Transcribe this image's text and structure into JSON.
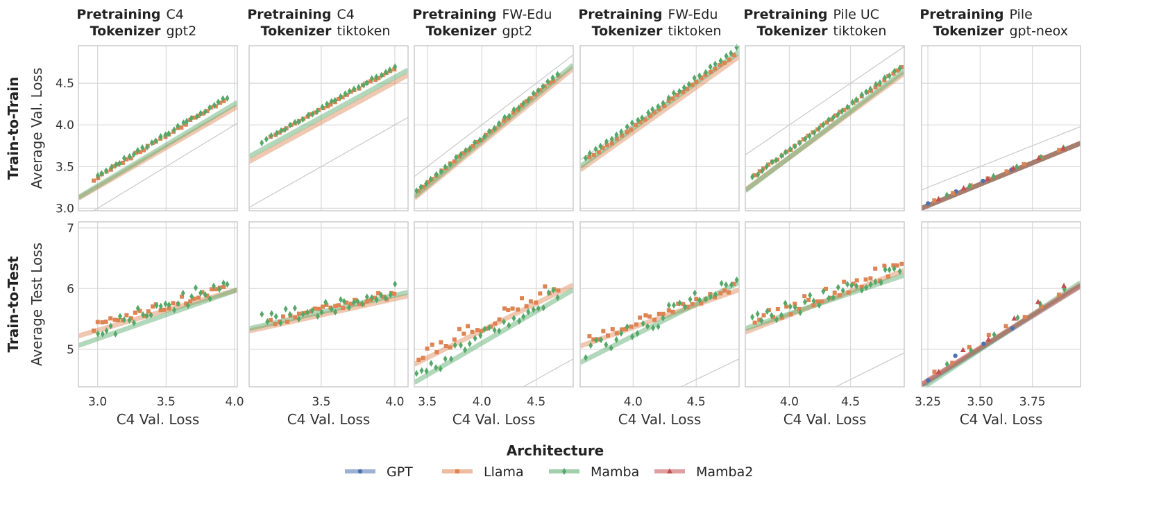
{
  "chart_data": {
    "type": "scatter",
    "colors": {
      "GPT": "#4c72b0",
      "Llama": "#dd8452",
      "Mamba": "#55a868",
      "Mamba2": "#c44e52",
      "grid": "#d9d9d9",
      "frame": "#cccccc",
      "identity": "#cccccc"
    },
    "row_labels": [
      "Train-to-Train",
      "Train-to-Test"
    ],
    "row_ylabels": [
      "Average Val. Loss",
      "Average Test Loss"
    ],
    "row_ylim": [
      [
        2.97,
        4.95
      ],
      [
        4.38,
        7.1
      ]
    ],
    "row_yticks": [
      [
        "3.0",
        "3.5",
        "4.0",
        "4.5"
      ],
      [
        "5",
        "6",
        "7"
      ]
    ],
    "xlabel": "C4 Val. Loss",
    "title_keys": [
      "Pretraining",
      "Tokenizer"
    ],
    "legend": {
      "title": "Architecture",
      "entries": [
        "GPT",
        "Llama",
        "Mamba",
        "Mamba2"
      ]
    },
    "columns": [
      {
        "pretraining": "C4",
        "tokenizer": "gpt2",
        "xlim": [
          2.86,
          4.02
        ],
        "xticks": [
          "3.0",
          "3.5",
          "4.0"
        ],
        "series": [
          {
            "name": "Llama",
            "x0": 2.97,
            "x1": 3.92,
            "n": 32,
            "fits": [
              {
                "x0": 2.86,
                "x1": 4.02,
                "y0": 3.12,
                "y1": 4.22
              },
              {
                "x0": 2.86,
                "x1": 4.02,
                "y0": 5.22,
                "y1": 5.98
              }
            ],
            "train": {
              "a": 3.23,
              "b": 1.0,
              "noise": 0.015
            },
            "test": {
              "a": 5.3,
              "b": 0.66,
              "noise": 0.07
            }
          },
          {
            "name": "Mamba",
            "x0": 3.0,
            "x1": 3.95,
            "n": 30,
            "fits": [
              {
                "x0": 2.86,
                "x1": 4.02,
                "y0": 3.13,
                "y1": 4.27
              },
              {
                "x0": 2.86,
                "x1": 4.02,
                "y0": 5.06,
                "y1": 5.98
              }
            ],
            "train": {
              "a": 3.25,
              "b": 1.0,
              "noise": 0.018
            },
            "test": {
              "a": 5.18,
              "b": 0.8,
              "noise": 0.15
            }
          }
        ]
      },
      {
        "pretraining": "C4",
        "tokenizer": "tiktoken",
        "xlim": [
          3.01,
          4.09
        ],
        "xticks": [
          "3.5",
          "4.0"
        ],
        "series": [
          {
            "name": "Llama",
            "x0": 3.16,
            "x1": 4.0,
            "n": 32,
            "fits": [
              {
                "x0": 3.01,
                "x1": 4.09,
                "y0": 3.56,
                "y1": 4.6
              },
              {
                "x0": 3.01,
                "x1": 4.09,
                "y0": 5.3,
                "y1": 5.88
              }
            ],
            "train": {
              "a": 3.71,
              "b": 0.98,
              "noise": 0.012
            },
            "test": {
              "a": 5.38,
              "b": 0.55,
              "noise": 0.07
            }
          },
          {
            "name": "Mamba",
            "x0": 3.1,
            "x1": 4.0,
            "n": 30,
            "fits": [
              {
                "x0": 3.01,
                "x1": 4.09,
                "y0": 3.62,
                "y1": 4.66
              },
              {
                "x0": 3.01,
                "x1": 4.09,
                "y0": 5.34,
                "y1": 5.94
              }
            ],
            "train": {
              "a": 3.71,
              "b": 1.0,
              "noise": 0.014
            },
            "test": {
              "a": 5.4,
              "b": 0.58,
              "noise": 0.13
            }
          }
        ]
      },
      {
        "pretraining": "FW-Edu",
        "tokenizer": "gpt2",
        "xlim": [
          3.38,
          4.84
        ],
        "xticks": [
          "3.5",
          "4.0",
          "4.5"
        ],
        "series": [
          {
            "name": "Llama",
            "x0": 3.42,
            "x1": 4.7,
            "n": 32,
            "fits": [
              {
                "x0": 3.38,
                "x1": 4.84,
                "y0": 3.12,
                "y1": 4.68
              },
              {
                "x0": 3.38,
                "x1": 4.84,
                "y0": 4.75,
                "y1": 6.06
              }
            ],
            "train": {
              "a": 3.17,
              "b": 1.07,
              "noise": 0.015
            },
            "test": {
              "a": 4.85,
              "b": 0.9,
              "noise": 0.12
            }
          },
          {
            "name": "Mamba",
            "x0": 3.4,
            "x1": 4.7,
            "n": 30,
            "fits": [
              {
                "x0": 3.38,
                "x1": 4.84,
                "y0": 3.14,
                "y1": 4.72
              },
              {
                "x0": 3.38,
                "x1": 4.84,
                "y0": 4.45,
                "y1": 5.98
              }
            ],
            "train": {
              "a": 3.18,
              "b": 1.08,
              "noise": 0.017
            },
            "test": {
              "a": 4.55,
              "b": 1.05,
              "noise": 0.13
            }
          }
        ]
      },
      {
        "pretraining": "FW-Edu",
        "tokenizer": "tiktoken",
        "xlim": [
          3.58,
          4.84
        ],
        "xticks": [
          "4.0",
          "4.5"
        ],
        "series": [
          {
            "name": "Llama",
            "x0": 3.65,
            "x1": 4.8,
            "n": 32,
            "fits": [
              {
                "x0": 3.58,
                "x1": 4.84,
                "y0": 3.46,
                "y1": 4.82
              },
              {
                "x0": 3.58,
                "x1": 4.84,
                "y0": 5.05,
                "y1": 5.98
              }
            ],
            "train": {
              "a": 3.52,
              "b": 1.08,
              "noise": 0.015
            },
            "test": {
              "a": 5.1,
              "b": 0.74,
              "noise": 0.08
            }
          },
          {
            "name": "Mamba",
            "x0": 3.62,
            "x1": 4.82,
            "n": 30,
            "fits": [
              {
                "x0": 3.58,
                "x1": 4.84,
                "y0": 3.5,
                "y1": 4.88
              },
              {
                "x0": 3.58,
                "x1": 4.84,
                "y0": 4.78,
                "y1": 6.1
              }
            ],
            "train": {
              "a": 3.56,
              "b": 1.09,
              "noise": 0.017
            },
            "test": {
              "a": 4.9,
              "b": 1.0,
              "noise": 0.15
            }
          }
        ]
      },
      {
        "pretraining": "Pile UC",
        "tokenizer": "tiktoken",
        "xlim": [
          3.64,
          4.94
        ],
        "xticks": [
          "4.0",
          "4.5"
        ],
        "series": [
          {
            "name": "Llama",
            "x0": 3.72,
            "x1": 4.92,
            "n": 34,
            "fits": [
              {
                "x0": 3.64,
                "x1": 4.94,
                "y0": 3.22,
                "y1": 4.62
              },
              {
                "x0": 3.64,
                "x1": 4.94,
                "y0": 5.28,
                "y1": 6.3
              }
            ],
            "train": {
              "a": 3.31,
              "b": 1.08,
              "noise": 0.012
            },
            "test": {
              "a": 5.38,
              "b": 0.78,
              "noise": 0.12
            }
          },
          {
            "name": "Mamba",
            "x0": 3.7,
            "x1": 4.9,
            "n": 32,
            "fits": [
              {
                "x0": 3.64,
                "x1": 4.94,
                "y0": 3.21,
                "y1": 4.65
              },
              {
                "x0": 3.64,
                "x1": 4.94,
                "y0": 5.34,
                "y1": 6.22
              }
            ],
            "train": {
              "a": 3.3,
              "b": 1.1,
              "noise": 0.013
            },
            "test": {
              "a": 5.4,
              "b": 0.7,
              "noise": 0.13
            }
          }
        ]
      },
      {
        "pretraining": "Pile",
        "tokenizer": "gpt-neox",
        "xlim": [
          3.22,
          3.98
        ],
        "xticks": [
          "3.25",
          "3.50",
          "3.75"
        ],
        "series": [
          {
            "name": "GPT",
            "x0": 3.25,
            "x1": 3.65,
            "n": 4,
            "fits": [
              {
                "x0": 3.22,
                "x1": 3.98,
                "y0": 3.0,
                "y1": 3.78
              },
              {
                "x0": 3.22,
                "x1": 3.98,
                "y0": 4.4,
                "y1": 6.04
              }
            ],
            "train": {
              "a": 3.03,
              "b": 1.02,
              "noise": 0.005
            },
            "test": {
              "a": 4.5,
              "b": 2.15,
              "noise": 0.1
            }
          },
          {
            "name": "Llama",
            "x0": 3.28,
            "x1": 3.88,
            "n": 8,
            "fits": [
              {
                "x0": 3.22,
                "x1": 3.98,
                "y0": 3.0,
                "y1": 3.78
              },
              {
                "x0": 3.22,
                "x1": 3.98,
                "y0": 4.42,
                "y1": 6.04
              }
            ],
            "train": {
              "a": 3.03,
              "b": 1.02,
              "noise": 0.005
            },
            "test": {
              "a": 4.5,
              "b": 2.15,
              "noise": 0.05
            }
          },
          {
            "name": "Mamba",
            "x0": 3.34,
            "x1": 3.9,
            "n": 6,
            "fits": [
              {
                "x0": 3.22,
                "x1": 3.98,
                "y0": 3.0,
                "y1": 3.78
              },
              {
                "x0": 3.22,
                "x1": 3.98,
                "y0": 4.35,
                "y1": 6.1
              }
            ],
            "train": {
              "a": 3.03,
              "b": 1.02,
              "noise": 0.005
            },
            "test": {
              "a": 4.45,
              "b": 2.25,
              "noise": 0.05
            }
          },
          {
            "name": "Mamba2",
            "x0": 3.3,
            "x1": 3.9,
            "n": 6,
            "fits": [
              {
                "x0": 3.22,
                "x1": 3.98,
                "y0": 3.0,
                "y1": 3.78
              },
              {
                "x0": 3.22,
                "x1": 3.98,
                "y0": 4.42,
                "y1": 6.06
              }
            ],
            "train": {
              "a": 3.03,
              "b": 1.02,
              "noise": 0.005
            },
            "test": {
              "a": 4.5,
              "b": 2.18,
              "noise": 0.08
            }
          }
        ]
      }
    ]
  }
}
